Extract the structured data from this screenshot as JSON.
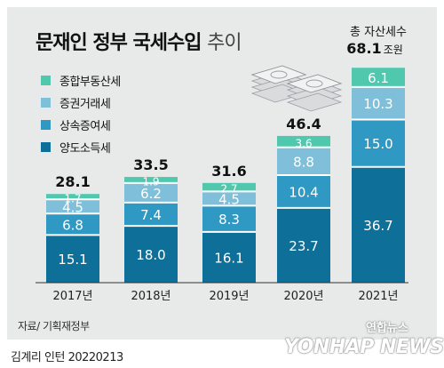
{
  "title": {
    "bold": "문재인 정부 국세수입",
    "light": "추이"
  },
  "chart_data": {
    "type": "bar",
    "stacked": true,
    "unit": "조원",
    "categories": [
      "2017년",
      "2018년",
      "2019년",
      "2020년",
      "2021년"
    ],
    "totals": [
      "28.1",
      "33.5",
      "31.6",
      "46.4",
      "68.1조원"
    ],
    "total_note": "총 자산세수",
    "series": [
      {
        "name": "양도소득세",
        "color": "#0e6f99",
        "values": [
          15.1,
          18.0,
          16.1,
          23.7,
          36.7
        ],
        "labels": [
          "15.1",
          "18.0",
          "16.1",
          "23.7",
          "36.7"
        ]
      },
      {
        "name": "상속증여세",
        "color": "#2f98c3",
        "values": [
          6.8,
          7.4,
          8.3,
          10.4,
          15.0
        ],
        "labels": [
          "6.8",
          "7.4",
          "8.3",
          "10.4",
          "15.0"
        ]
      },
      {
        "name": "증권거래세",
        "color": "#7fbfd9",
        "values": [
          4.5,
          6.2,
          4.5,
          8.8,
          10.3
        ],
        "labels": [
          "4.5",
          "6.2",
          "4.5",
          "8.8",
          "10.3"
        ]
      },
      {
        "name": "종합부동산세",
        "color": "#4fc8ad",
        "values": [
          1.7,
          1.9,
          2.7,
          3.6,
          6.1
        ],
        "labels": [
          "1.7",
          "1.9",
          "2.7",
          "3.6",
          "6.1"
        ]
      }
    ],
    "ylim": [
      0,
      70
    ],
    "legend_position": "top-left"
  },
  "legend": [
    {
      "label": "종합부동산세",
      "color": "#4fc8ad"
    },
    {
      "label": "증권거래세",
      "color": "#7fbfd9"
    },
    {
      "label": "상속증여세",
      "color": "#2f98c3"
    },
    {
      "label": "양도소득세",
      "color": "#0e6f99"
    }
  ],
  "source": "자료/ 기획재정부",
  "credit": "김계리 인턴  20220213",
  "watermark": {
    "logo": "연합뉴스",
    "text": "YONHAP NEWS"
  },
  "icon": "money-stack-icon"
}
